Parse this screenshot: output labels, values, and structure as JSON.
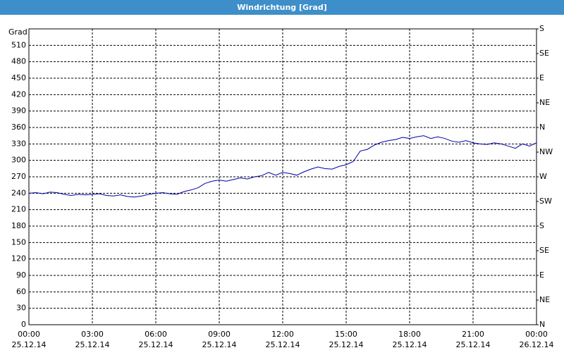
{
  "chart_data": {
    "type": "line",
    "title": "Windrichtung [Grad]",
    "y_label": "Grad",
    "x": [
      0,
      20,
      40,
      60,
      80,
      100,
      120,
      140,
      160,
      180,
      200,
      220,
      240,
      260,
      280,
      300,
      320,
      340,
      360,
      380,
      400,
      420,
      440,
      460,
      480,
      500,
      520,
      540,
      560,
      580,
      600,
      620,
      640,
      660,
      680,
      700,
      720,
      740,
      760,
      780,
      800,
      820,
      840,
      860,
      880,
      900,
      920,
      940,
      960,
      980,
      1000,
      1020,
      1040,
      1060,
      1080,
      1100,
      1120,
      1140,
      1160,
      1180,
      1200,
      1220,
      1240,
      1260,
      1280,
      1300,
      1320,
      1340,
      1360,
      1380,
      1400,
      1420,
      1440
    ],
    "series": [
      {
        "name": "Windrichtung",
        "color": "#0000a8",
        "values": [
          240,
          241,
          239,
          242,
          241,
          238,
          236,
          238,
          237,
          238,
          239,
          236,
          235,
          237,
          234,
          233,
          235,
          238,
          240,
          241,
          239,
          238,
          243,
          246,
          250,
          258,
          262,
          264,
          262,
          265,
          268,
          266,
          270,
          272,
          278,
          273,
          278,
          276,
          273,
          279,
          284,
          288,
          285,
          284,
          289,
          292,
          298,
          317,
          320,
          328,
          333,
          336,
          338,
          342,
          340,
          343,
          345,
          340,
          343,
          340,
          335,
          333,
          336,
          332,
          330,
          329,
          332,
          330,
          326,
          322,
          330,
          326,
          332
        ]
      }
    ],
    "xlim": [
      0,
      1440
    ],
    "xticks": [
      {
        "value": 0,
        "label": "00:00"
      },
      {
        "value": 180,
        "label": "03:00"
      },
      {
        "value": 360,
        "label": "06:00"
      },
      {
        "value": 540,
        "label": "09:00"
      },
      {
        "value": 720,
        "label": "12:00"
      },
      {
        "value": 900,
        "label": "15:00"
      },
      {
        "value": 1080,
        "label": "18:00"
      },
      {
        "value": 1260,
        "label": "21:00"
      },
      {
        "value": 1440,
        "label": "00:00"
      }
    ],
    "xtick_dates": [
      "25.12.14",
      "25.12.14",
      "25.12.14",
      "25.12.14",
      "25.12.14",
      "25.12.14",
      "25.12.14",
      "25.12.14",
      "26.12.14"
    ],
    "ylim": [
      0,
      540
    ],
    "yticks": [
      0,
      30,
      60,
      90,
      120,
      150,
      180,
      210,
      240,
      270,
      300,
      330,
      360,
      390,
      420,
      450,
      480,
      510
    ],
    "y2lim": [
      0,
      540
    ],
    "y2ticks": [
      {
        "value": 0,
        "label": "N"
      },
      {
        "value": 45,
        "label": "NE"
      },
      {
        "value": 90,
        "label": "E"
      },
      {
        "value": 135,
        "label": "SE"
      },
      {
        "value": 180,
        "label": "S"
      },
      {
        "value": 225,
        "label": "SW"
      },
      {
        "value": 270,
        "label": "W"
      },
      {
        "value": 315,
        "label": "NW"
      },
      {
        "value": 360,
        "label": "N"
      },
      {
        "value": 405,
        "label": "NE"
      },
      {
        "value": 450,
        "label": "E"
      },
      {
        "value": 495,
        "label": "SE"
      },
      {
        "value": 540,
        "label": "S"
      }
    ],
    "grid": true
  }
}
